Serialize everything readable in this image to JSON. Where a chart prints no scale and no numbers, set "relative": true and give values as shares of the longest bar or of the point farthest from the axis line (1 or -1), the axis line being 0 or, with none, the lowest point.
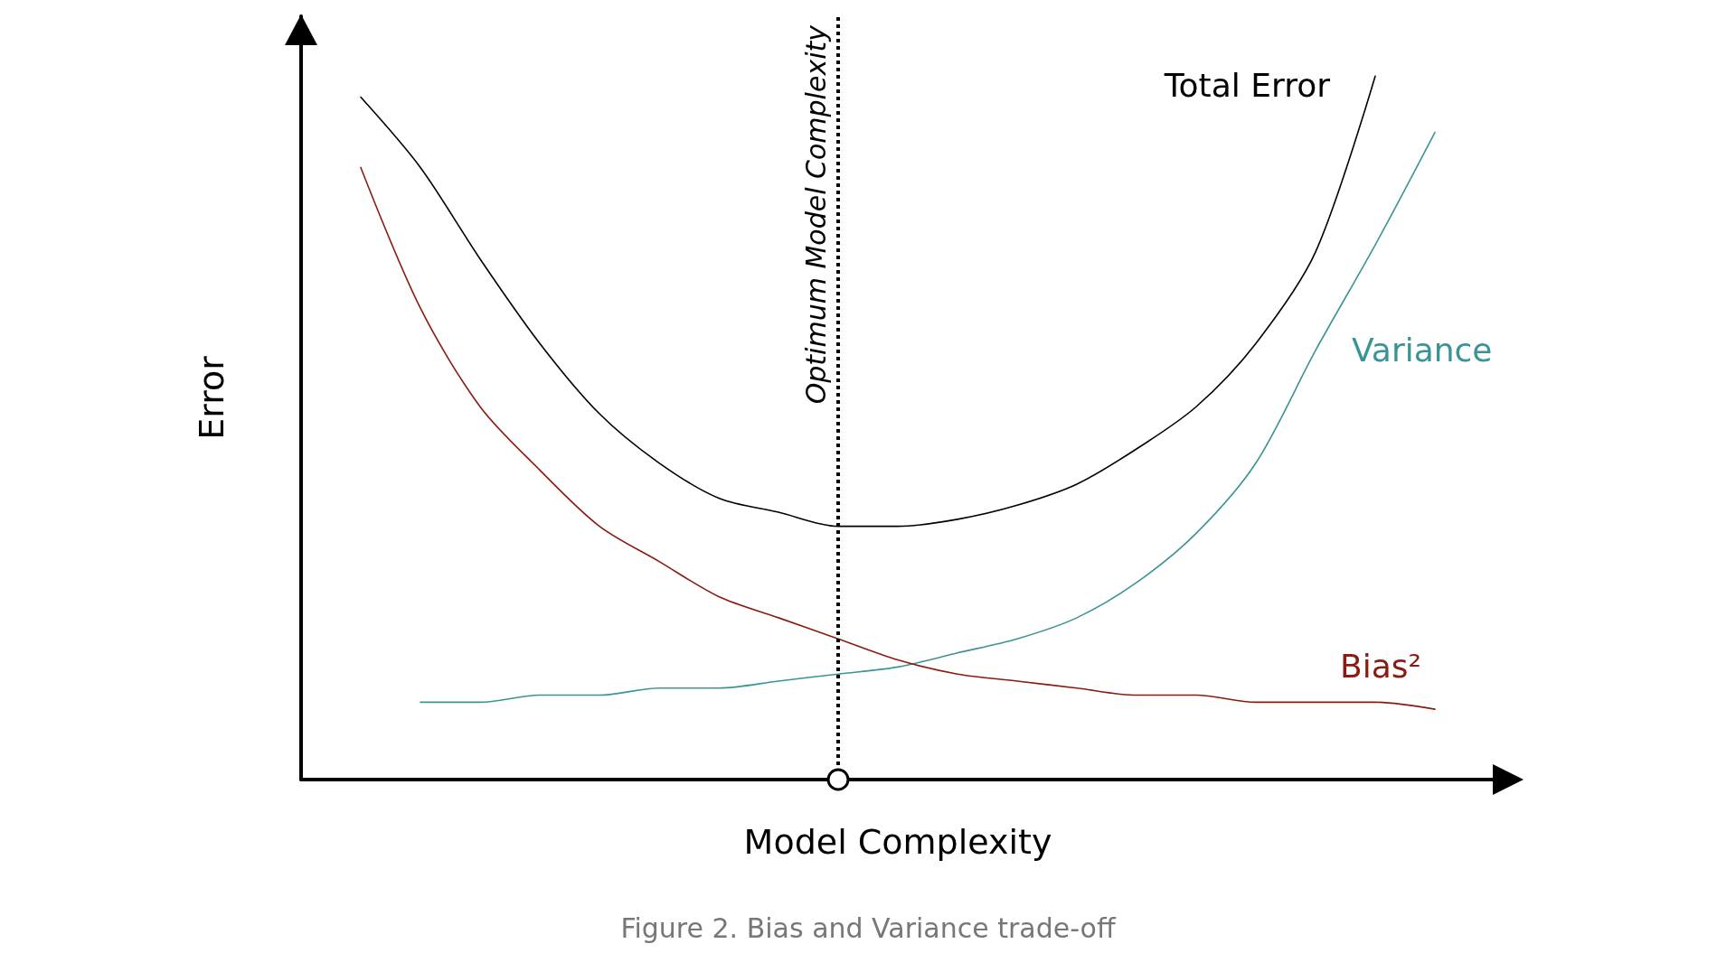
{
  "chart_data": {
    "type": "line",
    "relative": true,
    "xlabel": "Model Complexity",
    "ylabel": "Error",
    "legend": false,
    "grid": false,
    "marker": "none",
    "line_style": "solid",
    "categories": [
      null,
      null,
      null,
      null,
      null,
      null,
      null,
      null,
      null,
      null,
      null,
      null,
      null,
      null,
      null,
      null,
      null,
      null,
      null,
      null,
      null
    ],
    "series": [
      {
        "name": "Total Error",
        "color": "#000000",
        "values": [
          null,
          0.97,
          0.87,
          0.74,
          0.62,
          0.52,
          0.45,
          0.4,
          0.38,
          0.36,
          0.36,
          0.37,
          0.39,
          0.42,
          0.47,
          0.53,
          0.62,
          0.75,
          1.0,
          null,
          null
        ]
      },
      {
        "name": "Variance",
        "color": "#3a9494",
        "values": [
          null,
          null,
          0.11,
          0.11,
          0.12,
          0.12,
          0.13,
          0.13,
          0.14,
          0.15,
          0.16,
          0.18,
          0.2,
          0.23,
          0.28,
          0.35,
          0.45,
          0.61,
          0.76,
          0.92,
          null
        ]
      },
      {
        "name": "Bias²",
        "color": "#8b1a10",
        "values": [
          null,
          0.87,
          0.67,
          0.53,
          0.44,
          0.36,
          0.31,
          0.26,
          0.23,
          0.2,
          0.17,
          0.15,
          0.14,
          0.13,
          0.12,
          0.12,
          0.11,
          0.11,
          0.11,
          0.1,
          null
        ]
      }
    ],
    "ref_lines": [
      {
        "axis": "x",
        "label": "Optimum Model Complexity",
        "color": "#000000",
        "line_style": "dotted"
      }
    ],
    "annotations": [
      "Figure 2. Bias and Variance trade-off"
    ]
  }
}
